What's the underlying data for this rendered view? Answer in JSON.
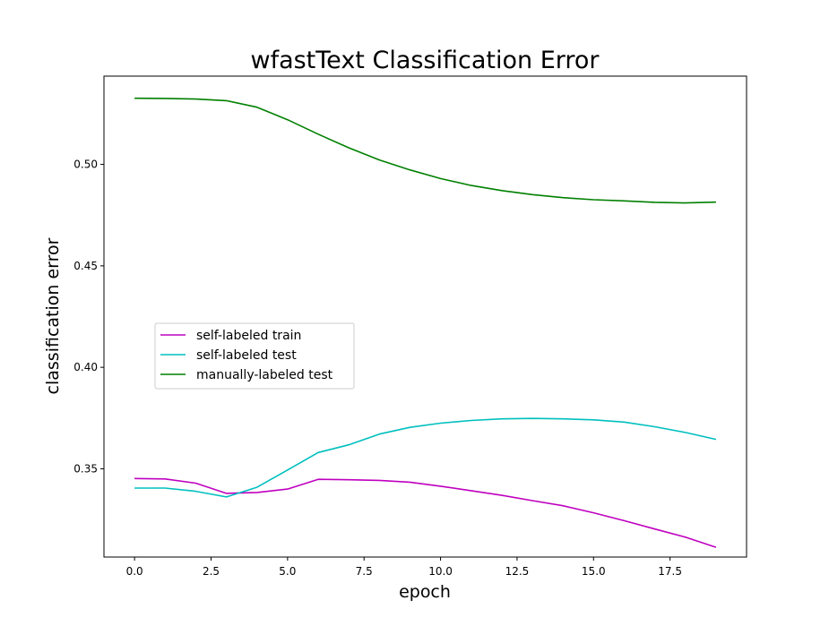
{
  "chart_data": {
    "type": "line",
    "title": "wfastText Classification Error",
    "xlabel": "epoch",
    "ylabel": "classification error",
    "xlim": [
      -1.0,
      20.0
    ],
    "ylim": [
      0.3065,
      0.5435
    ],
    "xticks": [
      0.0,
      2.5,
      5.0,
      7.5,
      10.0,
      12.5,
      15.0,
      17.5
    ],
    "xtick_labels": [
      "0.0",
      "2.5",
      "5.0",
      "7.5",
      "10.0",
      "12.5",
      "15.0",
      "17.5"
    ],
    "yticks": [
      0.35,
      0.4,
      0.45,
      0.5
    ],
    "ytick_labels": [
      "0.35",
      "0.40",
      "0.45",
      "0.50"
    ],
    "grid": false,
    "legend_position": "center-left",
    "x": [
      0,
      1,
      2,
      3,
      4,
      5,
      6,
      7,
      8,
      9,
      10,
      11,
      12,
      13,
      14,
      15,
      16,
      17,
      18,
      19
    ],
    "series": [
      {
        "name": "self-labeled train",
        "color": "#bf00bf",
        "values": [
          0.3452,
          0.345,
          0.3429,
          0.3379,
          0.3383,
          0.34,
          0.3448,
          0.3446,
          0.3443,
          0.3434,
          0.3414,
          0.3392,
          0.3369,
          0.3343,
          0.3318,
          0.3283,
          0.3244,
          0.3203,
          0.3163,
          0.3113
        ]
      },
      {
        "name": "self-labeled test",
        "color": "#00bfbf",
        "values": [
          0.3405,
          0.3405,
          0.3389,
          0.3361,
          0.3409,
          0.3494,
          0.358,
          0.3618,
          0.3671,
          0.3704,
          0.3725,
          0.3738,
          0.3746,
          0.3748,
          0.3746,
          0.3741,
          0.373,
          0.3707,
          0.3679,
          0.3645
        ]
      },
      {
        "name": "manually-labeled test",
        "color": "#008000",
        "values": [
          0.5326,
          0.5325,
          0.5322,
          0.5314,
          0.5282,
          0.522,
          0.5149,
          0.5082,
          0.5022,
          0.4973,
          0.493,
          0.4896,
          0.4871,
          0.4851,
          0.4836,
          0.4826,
          0.482,
          0.4813,
          0.481,
          0.4814
        ]
      }
    ]
  }
}
